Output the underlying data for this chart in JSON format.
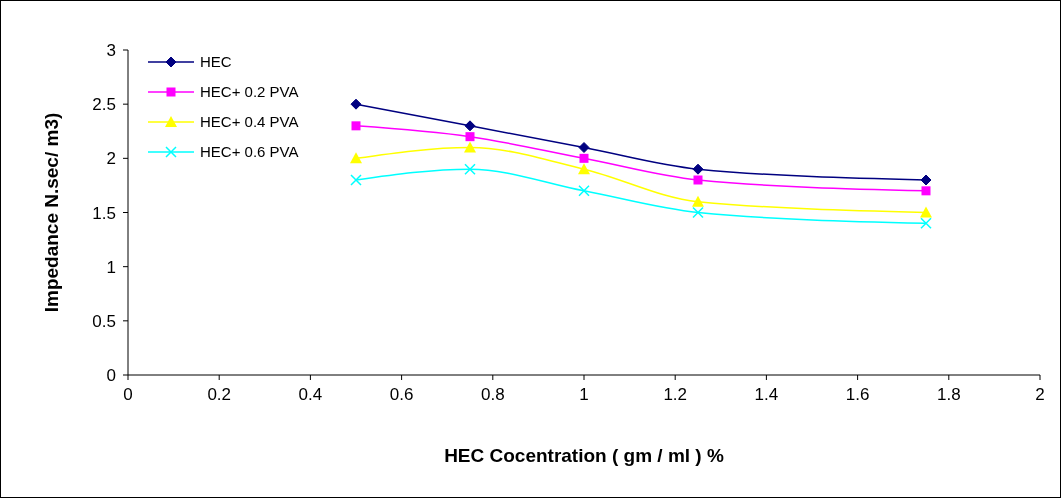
{
  "chart_data": {
    "type": "line",
    "xlabel": "HEC Cocentration ( gm / ml ) %",
    "ylabel": "Impedance N.sec/ m3)",
    "x": [
      0.5,
      0.75,
      1,
      1.25,
      1.75
    ],
    "xlim": [
      0,
      2
    ],
    "xticks": [
      0,
      0.2,
      0.4,
      0.6,
      0.8,
      1,
      1.2,
      1.4,
      1.6,
      1.8,
      2
    ],
    "ylim": [
      0,
      3
    ],
    "yticks": [
      0,
      0.5,
      1,
      1.5,
      2,
      2.5,
      3
    ],
    "legend": "top left",
    "grid": false,
    "line_style": "solid",
    "series": [
      {
        "name": "HEC",
        "color": "#000080",
        "marker": "diamond",
        "values": [
          2.5,
          2.3,
          2.1,
          1.9,
          1.8
        ]
      },
      {
        "name": "HEC+ 0.2 PVA",
        "color": "#ff00ff",
        "marker": "square",
        "values": [
          2.3,
          2.2,
          2.0,
          1.8,
          1.7
        ]
      },
      {
        "name": "HEC+ 0.4 PVA",
        "color": "#ffff00",
        "marker": "triangle",
        "values": [
          2.0,
          2.1,
          1.9,
          1.6,
          1.5
        ]
      },
      {
        "name": "HEC+ 0.6 PVA",
        "color": "#00ffff",
        "marker": "cross",
        "values": [
          1.8,
          1.9,
          1.7,
          1.5,
          1.4
        ]
      }
    ]
  }
}
